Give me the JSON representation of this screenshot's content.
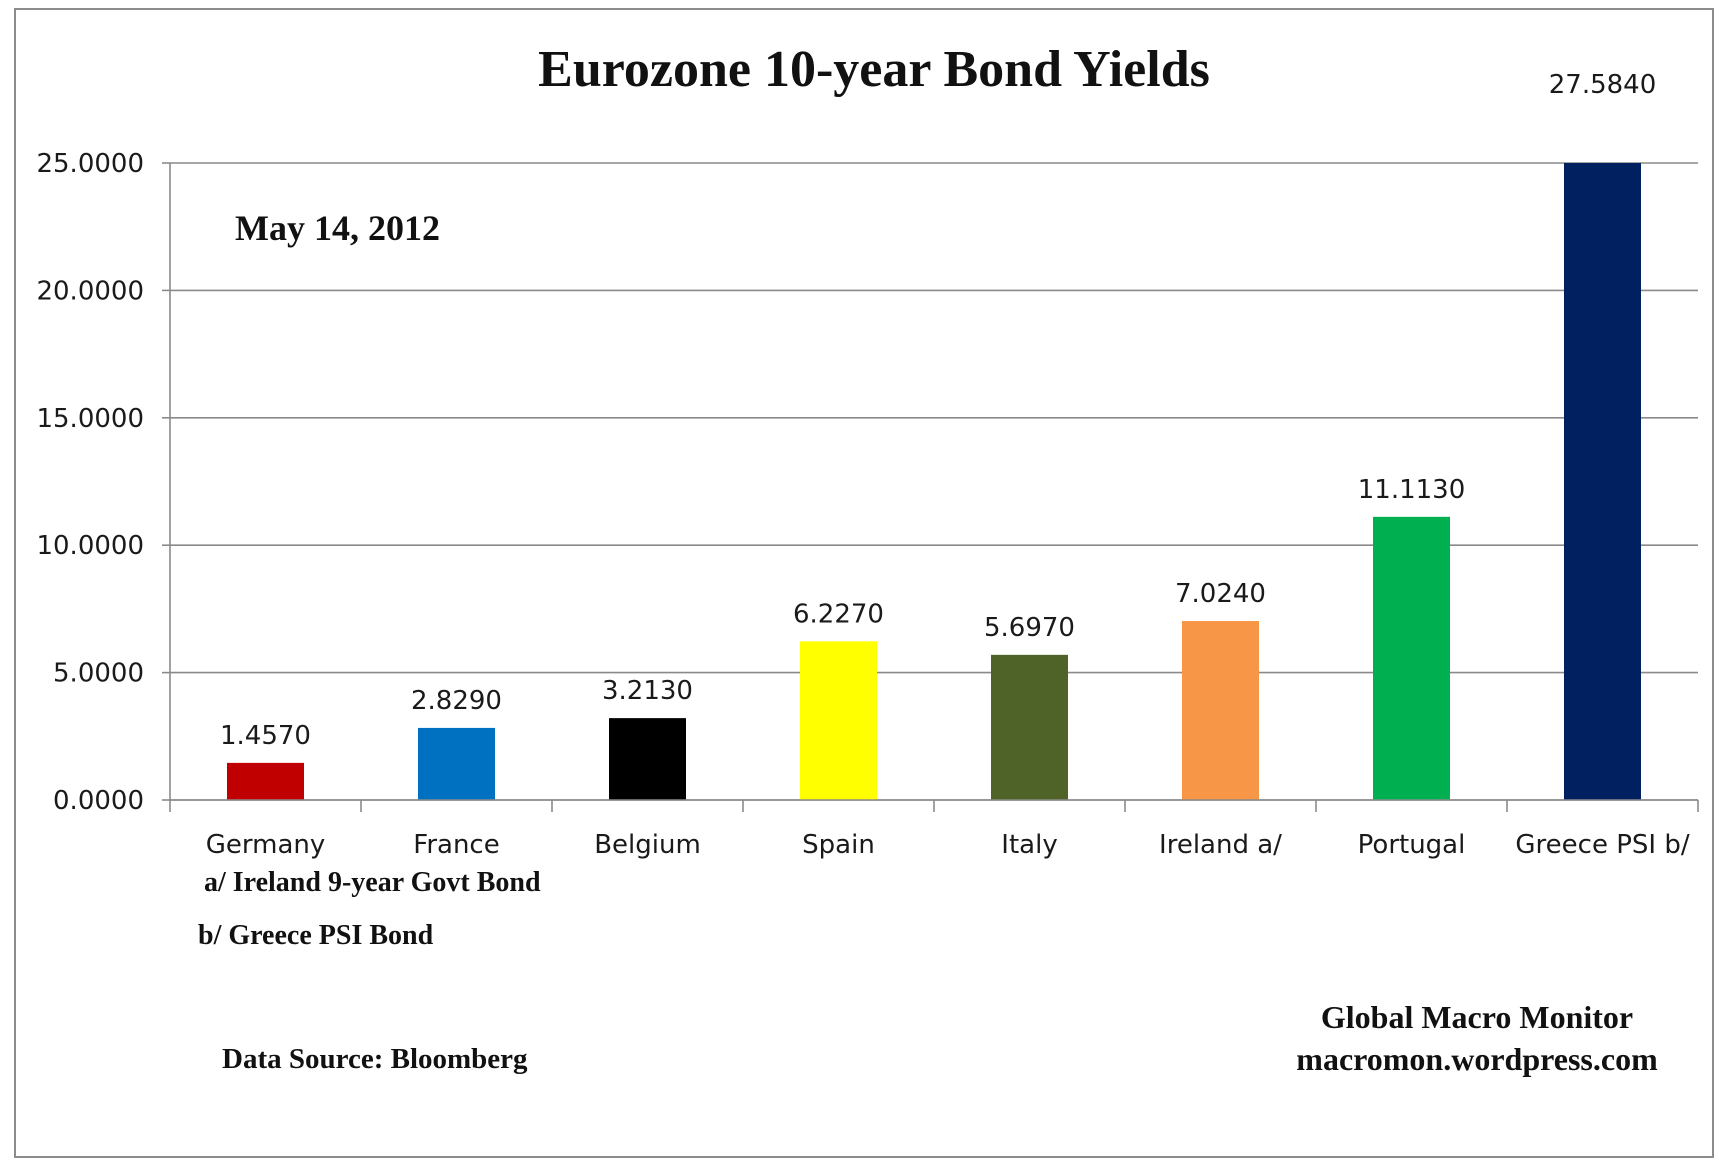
{
  "chart_data": {
    "type": "bar",
    "title": "Eurozone 10-year Bond Yields",
    "subtitle": "May 14, 2012",
    "categories": [
      "Germany",
      "France",
      "Belgium",
      "Spain",
      "Italy",
      "Ireland  a/",
      "Portugal",
      "Greece PSI b/"
    ],
    "values": [
      1.457,
      2.829,
      3.213,
      6.227,
      5.697,
      7.024,
      11.113,
      27.584
    ],
    "value_labels": [
      "1.4570",
      "2.8290",
      "3.2130",
      "6.2270",
      "5.6970",
      "7.0240",
      "11.1130",
      "27.5840"
    ],
    "colors": [
      "#c00000",
      "#0070c0",
      "#000000",
      "#ffff00",
      "#4f6228",
      "#f79646",
      "#00b050",
      "#002060"
    ],
    "ylim": [
      0,
      25
    ],
    "yticks": [
      0,
      5,
      10,
      15,
      20,
      25
    ],
    "ytick_labels": [
      "0.0000",
      "5.0000",
      "10.0000",
      "15.0000",
      "20.0000",
      "25.0000"
    ],
    "grid": true,
    "legend": "none",
    "xlabel": "",
    "ylabel": ""
  },
  "notes": {
    "a": "a/ Ireland 9-year Govt Bond",
    "b": "b/  Greece  PSI Bond"
  },
  "source": "Data Source:  Bloomberg",
  "credit": {
    "line1": "Global Macro Monitor",
    "line2": "macromon.wordpress.com"
  }
}
